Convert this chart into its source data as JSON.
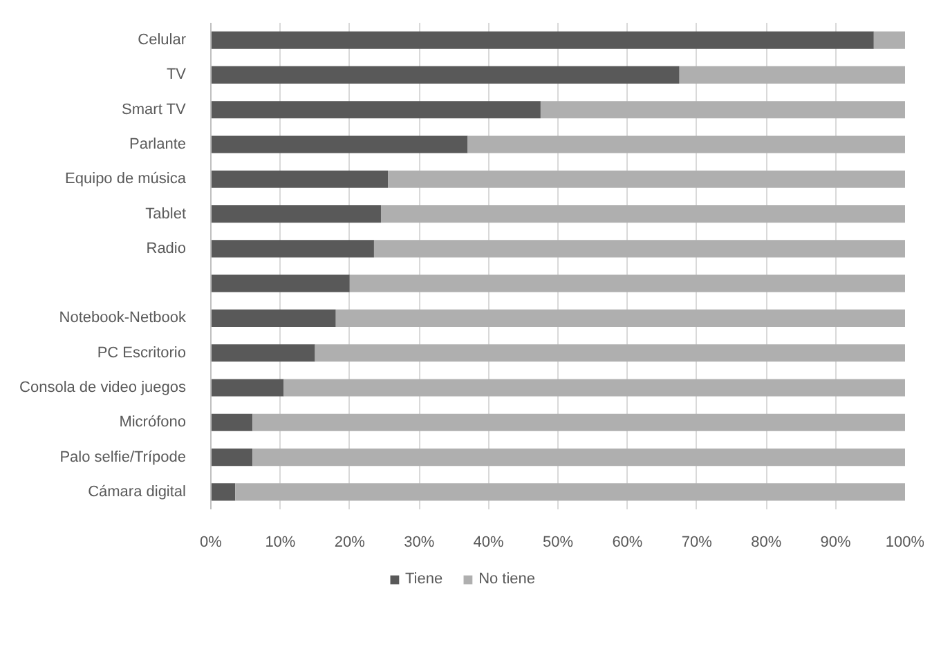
{
  "chart_data": {
    "type": "bar",
    "orientation": "horizontal",
    "stacked": true,
    "categories": [
      "Celular",
      "TV",
      "Smart TV",
      "Parlante",
      "Equipo de música",
      "Tablet",
      "Radio",
      null,
      "Notebook-Netbook",
      "PC Escritorio",
      "Consola de video juegos",
      "Micrófono",
      "Palo selfie/Trípode",
      "Cámara digital"
    ],
    "series": [
      {
        "name": "Tiene",
        "color": "#595959",
        "values": [
          95.5,
          67.5,
          47.5,
          37,
          25.5,
          24.5,
          23.5,
          20,
          18,
          15,
          10.5,
          6,
          6,
          3.5
        ]
      },
      {
        "name": "No tiene",
        "color": "#afafaf",
        "values": [
          4.5,
          32.5,
          52.5,
          63,
          74.5,
          75.5,
          76.5,
          80,
          82,
          85,
          89.5,
          94,
          94,
          96.5
        ]
      }
    ],
    "xlim": [
      0,
      100
    ],
    "xticks": [
      {
        "value": 0,
        "label": "0%"
      },
      {
        "value": 10,
        "label": "10%"
      },
      {
        "value": 20,
        "label": "20%"
      },
      {
        "value": 30,
        "label": "30%"
      },
      {
        "value": 40,
        "label": "40%"
      },
      {
        "value": 50,
        "label": "50%"
      },
      {
        "value": 60,
        "label": "60%"
      },
      {
        "value": 70,
        "label": "70%"
      },
      {
        "value": 80,
        "label": "80%"
      },
      {
        "value": 90,
        "label": "90%"
      },
      {
        "value": 100,
        "label": "100%"
      }
    ],
    "grid": "x",
    "legend": "bottom"
  }
}
